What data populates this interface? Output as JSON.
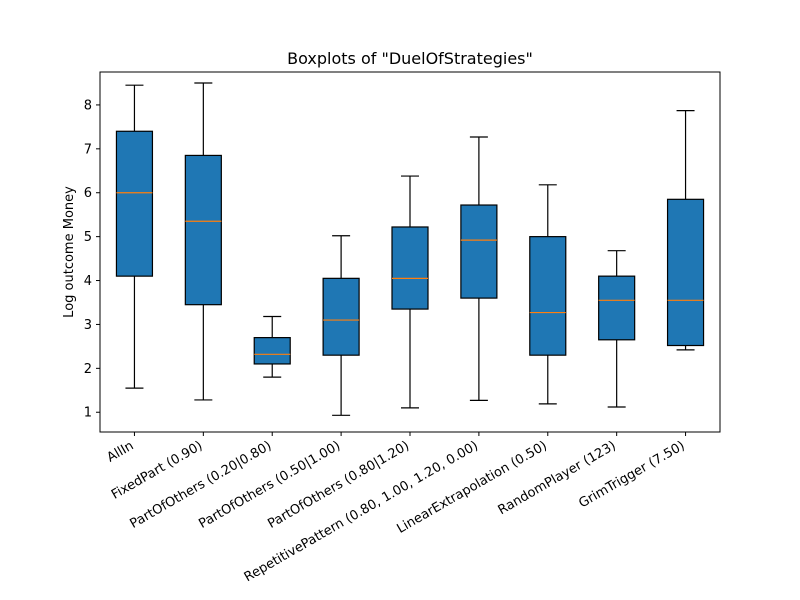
{
  "chart_data": {
    "type": "box",
    "title": "Boxplots of \"DuelOfStrategies\"",
    "xlabel": "",
    "ylabel": "Log outcome Money",
    "ylim": [
      0.55,
      8.75
    ],
    "yticks": [
      1,
      2,
      3,
      4,
      5,
      6,
      7,
      8
    ],
    "ytick_labels": [
      "1",
      "2",
      "3",
      "4",
      "5",
      "6",
      "7",
      "8"
    ],
    "grid": false,
    "legend": "none",
    "box_color": "#1f77b4",
    "median_color": "#ff7f0e",
    "categories": [
      "AllIn",
      "FixedPart (0.90)",
      "PartOfOthers (0.20|0.80)",
      "PartOfOthers (0.50|1.00)",
      "PartOfOthers (0.80|1.20)",
      "RepetitivePattern (0.80, 1.00, 1.20, 0.00)",
      "LinearExtrapolation (0.50)",
      "RandomPlayer (123)",
      "GrimTrigger (7.50)"
    ],
    "boxes": [
      {
        "whisker_low": 1.55,
        "q1": 4.1,
        "median": 6.0,
        "q3": 7.4,
        "whisker_high": 8.45
      },
      {
        "whisker_low": 1.28,
        "q1": 3.45,
        "median": 5.35,
        "q3": 6.85,
        "whisker_high": 8.5
      },
      {
        "whisker_low": 1.8,
        "q1": 2.1,
        "median": 2.32,
        "q3": 2.7,
        "whisker_high": 3.18
      },
      {
        "whisker_low": 0.93,
        "q1": 2.3,
        "median": 3.1,
        "q3": 4.05,
        "whisker_high": 5.02
      },
      {
        "whisker_low": 1.1,
        "q1": 3.35,
        "median": 4.05,
        "q3": 5.22,
        "whisker_high": 6.38
      },
      {
        "whisker_low": 1.27,
        "q1": 3.6,
        "median": 4.92,
        "q3": 5.72,
        "whisker_high": 7.27
      },
      {
        "whisker_low": 1.19,
        "q1": 2.3,
        "median": 3.27,
        "q3": 5.0,
        "whisker_high": 6.18
      },
      {
        "whisker_low": 1.12,
        "q1": 2.65,
        "median": 3.55,
        "q3": 4.1,
        "whisker_high": 4.68
      },
      {
        "whisker_low": 2.42,
        "q1": 2.52,
        "median": 3.55,
        "q3": 5.85,
        "whisker_high": 7.87
      }
    ]
  }
}
